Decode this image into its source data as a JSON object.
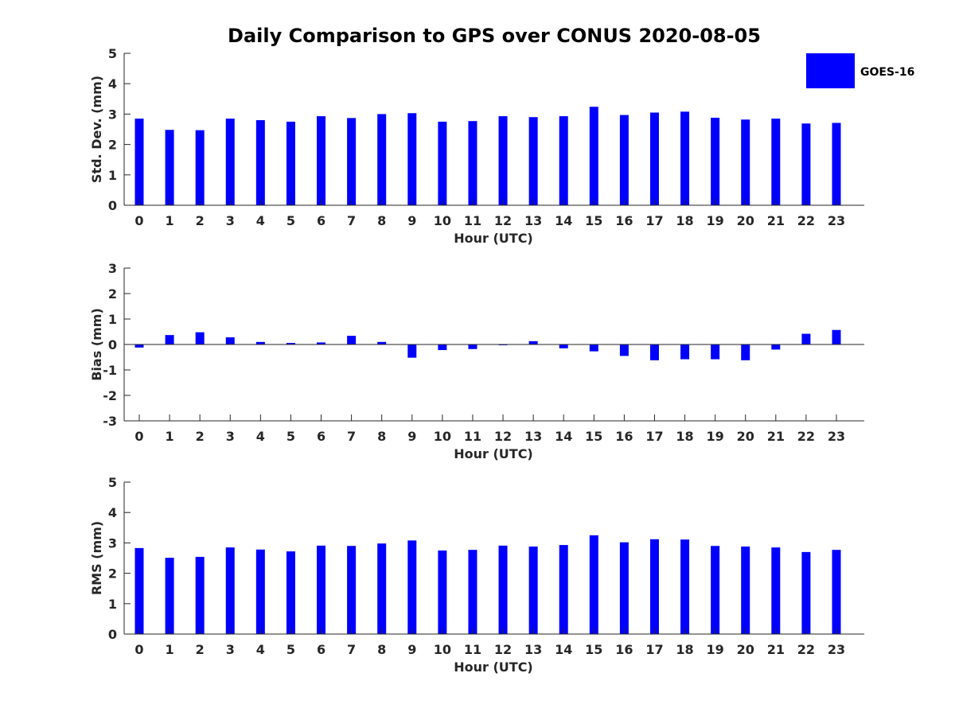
{
  "figure": {
    "title": "Daily Comparison to GPS over CONUS 2020-08-05",
    "bar_color": "#0000ff",
    "axis_color": "#262626"
  },
  "legend": {
    "label": "GOES-16",
    "color": "#0000ff",
    "position": "top-right"
  },
  "chart_data": [
    {
      "type": "bar",
      "title": "Daily Comparison to GPS over CONUS 2020-08-05",
      "xlabel": "Hour (UTC)",
      "ylabel": "Std. Dev. (mm)",
      "ylim": [
        0,
        5
      ],
      "yticks": [
        0,
        1,
        2,
        3,
        4,
        5
      ],
      "categories": [
        "0",
        "1",
        "2",
        "3",
        "4",
        "5",
        "6",
        "7",
        "8",
        "9",
        "10",
        "11",
        "12",
        "13",
        "14",
        "15",
        "16",
        "17",
        "18",
        "19",
        "20",
        "21",
        "22",
        "23"
      ],
      "series": [
        {
          "name": "GOES-16",
          "values": [
            2.85,
            2.48,
            2.47,
            2.85,
            2.8,
            2.75,
            2.93,
            2.87,
            3.0,
            3.03,
            2.75,
            2.77,
            2.93,
            2.9,
            2.93,
            3.24,
            2.97,
            3.05,
            3.08,
            2.88,
            2.82,
            2.85,
            2.69,
            2.71
          ]
        }
      ]
    },
    {
      "type": "bar",
      "xlabel": "Hour (UTC)",
      "ylabel": "Bias (mm)",
      "ylim": [
        -3,
        3
      ],
      "yticks": [
        -3,
        -2,
        -1,
        0,
        1,
        2,
        3
      ],
      "categories": [
        "0",
        "1",
        "2",
        "3",
        "4",
        "5",
        "6",
        "7",
        "8",
        "9",
        "10",
        "11",
        "12",
        "13",
        "14",
        "15",
        "16",
        "17",
        "18",
        "19",
        "20",
        "21",
        "22",
        "23"
      ],
      "series": [
        {
          "name": "GOES-16",
          "values": [
            -0.12,
            0.37,
            0.48,
            0.28,
            0.1,
            0.06,
            0.08,
            0.34,
            0.1,
            -0.52,
            -0.22,
            -0.18,
            -0.03,
            0.13,
            -0.15,
            -0.27,
            -0.45,
            -0.62,
            -0.58,
            -0.58,
            -0.62,
            -0.2,
            0.42,
            0.57
          ]
        }
      ]
    },
    {
      "type": "bar",
      "xlabel": "Hour (UTC)",
      "ylabel": "RMS (mm)",
      "ylim": [
        0,
        5
      ],
      "yticks": [
        0,
        1,
        2,
        3,
        4,
        5
      ],
      "categories": [
        "0",
        "1",
        "2",
        "3",
        "4",
        "5",
        "6",
        "7",
        "8",
        "9",
        "10",
        "11",
        "12",
        "13",
        "14",
        "15",
        "16",
        "17",
        "18",
        "19",
        "20",
        "21",
        "22",
        "23"
      ],
      "series": [
        {
          "name": "GOES-16",
          "values": [
            2.83,
            2.51,
            2.54,
            2.85,
            2.78,
            2.72,
            2.91,
            2.9,
            2.98,
            3.08,
            2.75,
            2.77,
            2.91,
            2.88,
            2.93,
            3.25,
            3.02,
            3.12,
            3.11,
            2.9,
            2.88,
            2.85,
            2.7,
            2.77
          ]
        }
      ]
    }
  ]
}
